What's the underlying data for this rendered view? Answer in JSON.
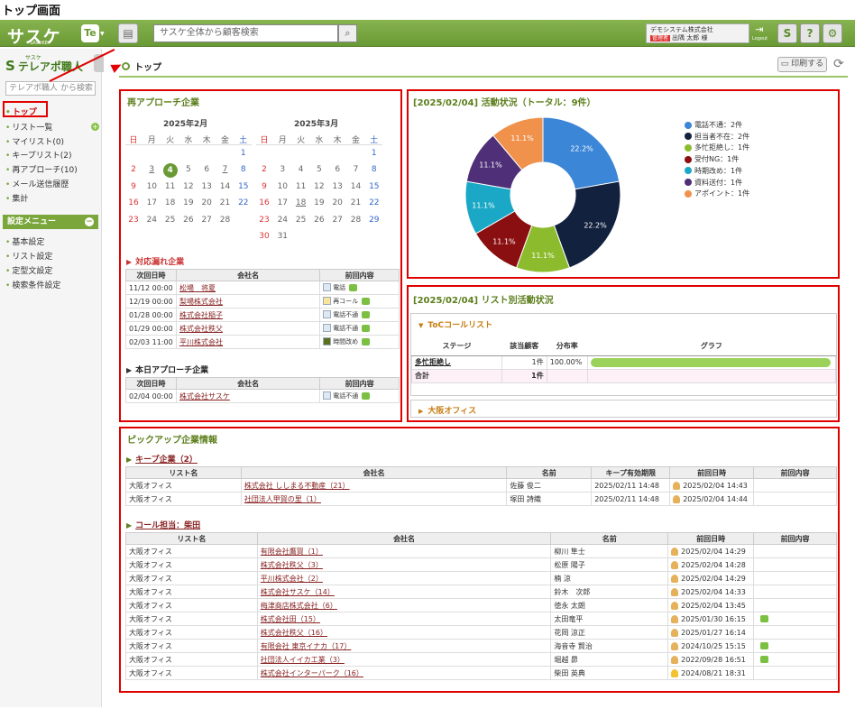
{
  "page_title": "トップ画面",
  "header": {
    "logo": "サスケ",
    "logo_sub": "SASUKE",
    "te_label": "Te",
    "search_placeholder": "サスケ全体から顧客検索",
    "company_name": "デモシステム株式会社",
    "admin_badge": "管理者",
    "user_name": "出隅 太郎 様",
    "logout_label": "Logout",
    "icons": [
      "sasuke-icon",
      "help-icon",
      "gear-icon"
    ]
  },
  "sidebar": {
    "app_name": "テレアポ職人",
    "app_ruby": "サスケ",
    "search_placeholder": "テレアポ職人 から検索",
    "items": [
      "トップ",
      "リスト一覧",
      "マイリスト(0)",
      "キープリスト(2)",
      "再アプローチ(10)",
      "メール送信履歴",
      "集計"
    ],
    "settings_label": "設定メニュー",
    "settings_items": [
      "基本設定",
      "リスト設定",
      "定型文設定",
      "検索条件設定"
    ]
  },
  "breadcrumb": {
    "label": "トップ",
    "print_label": "印刷する"
  },
  "reapproach": {
    "title": "再アプローチ企業",
    "calendars": [
      {
        "month": "2025年2月",
        "weekdays": [
          "日",
          "月",
          "火",
          "水",
          "木",
          "金",
          "土"
        ],
        "rows": [
          [
            "",
            "",
            "",
            "",
            "",
            "",
            "1"
          ],
          [
            "2",
            "3",
            "4",
            "5",
            "6",
            "7",
            "8"
          ],
          [
            "9",
            "10",
            "11",
            "12",
            "13",
            "14",
            "15"
          ],
          [
            "16",
            "17",
            "18",
            "19",
            "20",
            "21",
            "22"
          ],
          [
            "23",
            "24",
            "25",
            "26",
            "27",
            "28",
            ""
          ]
        ]
      },
      {
        "month": "2025年3月",
        "weekdays": [
          "日",
          "月",
          "火",
          "水",
          "木",
          "金",
          "土"
        ],
        "rows": [
          [
            "",
            "",
            "",
            "",
            "",
            "",
            "1"
          ],
          [
            "2",
            "3",
            "4",
            "5",
            "6",
            "7",
            "8"
          ],
          [
            "9",
            "10",
            "11",
            "12",
            "13",
            "14",
            "15"
          ],
          [
            "16",
            "17",
            "18",
            "19",
            "20",
            "21",
            "22"
          ],
          [
            "23",
            "24",
            "25",
            "26",
            "27",
            "28",
            "29"
          ],
          [
            "30",
            "31",
            "",
            "",
            "",
            "",
            ""
          ]
        ]
      }
    ],
    "missed_title": "対応漏れ企業",
    "columns": [
      "次回日時",
      "会社名",
      "前回内容"
    ],
    "missed": [
      {
        "date": "11/12 00:00",
        "company": "松場　将夏",
        "content": "電話",
        "color": "#dde8f3",
        "chat": true
      },
      {
        "date": "12/19 00:00",
        "company": "梨場株式会社",
        "content": "再コール",
        "color": "#f9e59a",
        "chat": true
      },
      {
        "date": "01/28 00:00",
        "company": "株式会社稲子",
        "content": "電話不通",
        "color": "#dde8f3",
        "chat": true
      },
      {
        "date": "01/29 00:00",
        "company": "株式会社秩父",
        "content": "電話不通",
        "color": "#dde8f3",
        "chat": true
      },
      {
        "date": "02/03 11:00",
        "company": "平川株式会社",
        "content": "時間改め",
        "color": "#5b6f1c",
        "chat": true
      }
    ],
    "today_title": "本日アプローチ企業",
    "today": [
      {
        "date": "02/04 00:00",
        "company": "株式会社サスケ",
        "content": "電話不通",
        "color": "#dde8f3",
        "chat": true
      }
    ]
  },
  "activity": {
    "title": "[2025/02/04] 活動状況（トータル：9件）",
    "chart_data": {
      "type": "pie",
      "series": [
        {
          "name": "電話不通：2件",
          "value": 2,
          "pct": "22.2%",
          "color": "#3b86d6"
        },
        {
          "name": "担当者不在：2件",
          "value": 2,
          "pct": "22.2%",
          "color": "#12213e"
        },
        {
          "name": "多忙拒絶し：1件",
          "value": 1,
          "pct": "11.1%",
          "color": "#8cbc2d"
        },
        {
          "name": "受付NG：1件",
          "value": 1,
          "pct": "11.1%",
          "color": "#8a0f11"
        },
        {
          "name": "時期改め：1件",
          "value": 1,
          "pct": "11.1%",
          "color": "#1ba8c6"
        },
        {
          "name": "資料送付：1件",
          "value": 1,
          "pct": "11.1%",
          "color": "#4e2f78"
        },
        {
          "name": "アポイント：1件",
          "value": 1,
          "pct": "11.1%",
          "color": "#f0924c"
        }
      ]
    }
  },
  "list_activity": {
    "title": "[2025/02/04] リスト別活動状況",
    "list1": "ToCコールリスト",
    "columns": [
      "ステージ",
      "該当顧客",
      "分布率",
      "グラフ"
    ],
    "rows": [
      {
        "stage": "多忙拒絶し",
        "count": "1件",
        "rate": "100.00%",
        "fill": 1.0
      }
    ],
    "total_label": "合計",
    "total_count": "1件",
    "list2": "大阪オフィス"
  },
  "pickup": {
    "title": "ピックアップ企業情報",
    "keep_title": "キープ企業（2）",
    "keep_columns": [
      "リスト名",
      "会社名",
      "名前",
      "キープ有効期限",
      "前回日時",
      "前回内容"
    ],
    "keep_rows": [
      {
        "list": "大阪オフィス",
        "company": "株式会社 ししまる不動産（21）",
        "name": "佐藤 俊二",
        "expire": "2025/02/11 14:48",
        "last": "2025/02/04 14:43",
        "chat": false
      },
      {
        "list": "大阪オフィス",
        "company": "社団法人甲賀の里（1）",
        "name": "塚田 詩織",
        "expire": "2025/02/11 14:48",
        "last": "2025/02/04 14:44",
        "chat": false
      }
    ],
    "call_title": "コール担当：柴田",
    "call_columns": [
      "リスト名",
      "会社名",
      "名前",
      "前回日時",
      "前回内容"
    ],
    "call_rows": [
      {
        "list": "大阪オフィス",
        "company": "有限会社鷹賀（1）",
        "name": "柳川 隼士",
        "last": "2025/02/04 14:29",
        "chat": false,
        "warn": false
      },
      {
        "list": "大阪オフィス",
        "company": "株式会社秩父（3）",
        "name": "松原 陽子",
        "last": "2025/02/04 14:28",
        "chat": false,
        "warn": false
      },
      {
        "list": "大阪オフィス",
        "company": "平川株式会社（2）",
        "name": "楠 涼",
        "last": "2025/02/04 14:29",
        "chat": false,
        "warn": false
      },
      {
        "list": "大阪オフィス",
        "company": "株式会社サスケ（14）",
        "name": "鈴木　次郎",
        "last": "2025/02/04 14:33",
        "chat": false,
        "warn": false
      },
      {
        "list": "大阪オフィス",
        "company": "梅津商店株式会社（6）",
        "name": "徳永 太朗",
        "last": "2025/02/04 13:45",
        "chat": false,
        "warn": false
      },
      {
        "list": "大阪オフィス",
        "company": "株式会社田（15）",
        "name": "太田竜平",
        "last": "2025/01/30 16:15",
        "chat": true,
        "warn": false
      },
      {
        "list": "大阪オフィス",
        "company": "株式会社秩父（16）",
        "name": "花岡 涼正",
        "last": "2025/01/27 16:14",
        "chat": false,
        "warn": false
      },
      {
        "list": "大阪オフィス",
        "company": "有限会社 東京イナカ（17）",
        "name": "海音寺 賢治",
        "last": "2024/10/25 15:15",
        "chat": true,
        "warn": false
      },
      {
        "list": "大阪オフィス",
        "company": "社団法人イイカ工業（3）",
        "name": "堀越 昴",
        "last": "2022/09/28 16:51",
        "chat": true,
        "warn": false
      },
      {
        "list": "大阪オフィス",
        "company": "株式会社インターパーク（16）",
        "name": "柴田 英典",
        "last": "2024/08/21 18:31",
        "chat": false,
        "warn": true
      }
    ]
  }
}
